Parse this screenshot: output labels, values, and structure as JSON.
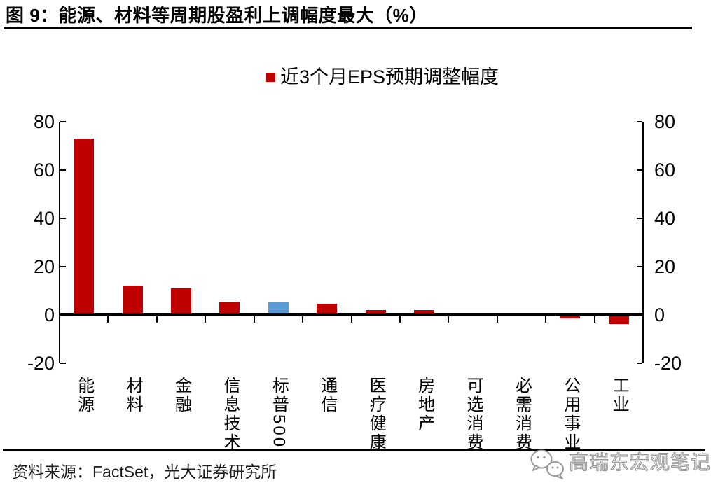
{
  "header": {
    "title": "图 9：能源、材料等周期股盈利上调幅度最大（%）"
  },
  "legend": {
    "label": "近3个月EPS预期调整幅度",
    "marker_color": "#c00000"
  },
  "chart_data": {
    "type": "bar",
    "title": "近3个月EPS预期调整幅度",
    "categories": [
      "能源",
      "材料",
      "金融",
      "信息技术",
      "标普500",
      "通信",
      "医疗健康",
      "房地产",
      "可选消费",
      "必需消费",
      "公用事业",
      "工业"
    ],
    "values": [
      73,
      12,
      11,
      5.5,
      5,
      4.5,
      2,
      2,
      0,
      0,
      -1.5,
      -4
    ],
    "xlabel": "",
    "ylabel": "",
    "ylim": [
      -20,
      80
    ],
    "y_ticks": [
      80,
      60,
      40,
      20,
      0,
      -20
    ],
    "y_axis_sides": "both",
    "grid": false,
    "legend_position": "top-center",
    "default_color": "#c00000",
    "highlight_index": 4,
    "highlight_color": "#5b9bd5",
    "axis_color": "#000000"
  },
  "footer": {
    "source": "资料来源：FactSet，光大证券研究所",
    "watermark": "高瑞东宏观笔记"
  }
}
